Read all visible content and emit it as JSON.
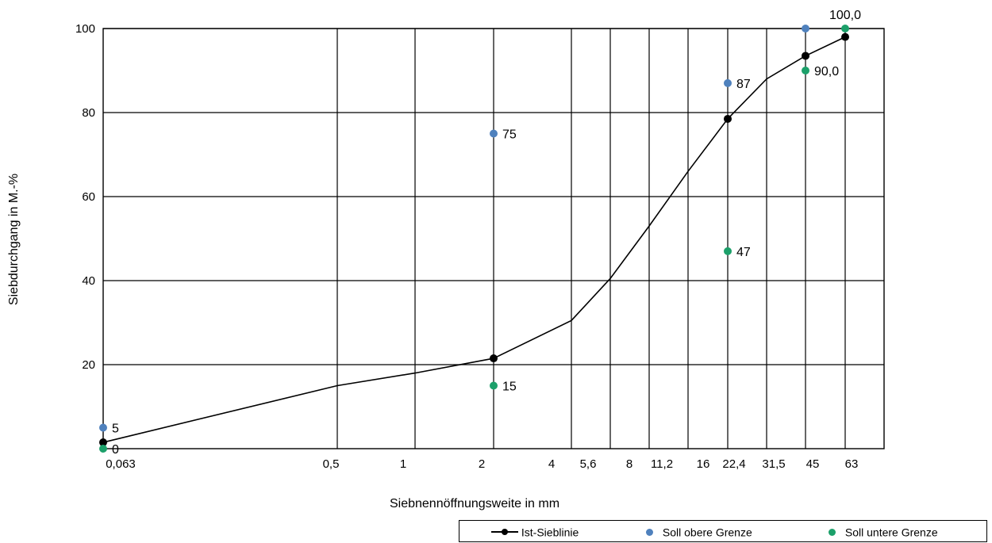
{
  "chart_data": {
    "type": "line",
    "xlabel": "Siebnennöffnungsweite in mm",
    "ylabel": "Siebdurchgang in M.-%",
    "ylim": [
      0,
      100
    ],
    "yticks": [
      "20",
      "40",
      "60",
      "80",
      "100"
    ],
    "xticks": [
      "0,063",
      "0,5",
      "1",
      "2",
      "4",
      "5,6",
      "8",
      "11,2",
      "16",
      "22,4",
      "31,5",
      "45",
      "63"
    ],
    "grid": true,
    "legend_position": "bottom-right",
    "series": [
      {
        "name": "Ist-Sieblinie",
        "kind": "line-markers",
        "color": "#000000",
        "points": [
          {
            "x": "0,063",
            "y": 1.5,
            "marker": true
          },
          {
            "x": "0,5",
            "y": 15,
            "marker": false
          },
          {
            "x": "1",
            "y": 18,
            "marker": false
          },
          {
            "x": "2",
            "y": 21.5,
            "marker": true
          },
          {
            "x": "4",
            "y": 30.5,
            "marker": false
          },
          {
            "x": "5,6",
            "y": 40.5,
            "marker": false
          },
          {
            "x": "8",
            "y": 53,
            "marker": false
          },
          {
            "x": "11,2",
            "y": 66,
            "marker": false
          },
          {
            "x": "16",
            "y": 78.5,
            "marker": true
          },
          {
            "x": "22,4",
            "y": 88,
            "marker": false
          },
          {
            "x": "31,5",
            "y": 93.5,
            "marker": true
          },
          {
            "x": "45",
            "y": 98,
            "marker": true
          }
        ]
      },
      {
        "name": "Soll obere Grenze",
        "kind": "scatter",
        "color": "#4f81bd",
        "points": [
          {
            "x": "0,063",
            "y": 5,
            "label": "5"
          },
          {
            "x": "2",
            "y": 75,
            "label": "75"
          },
          {
            "x": "16",
            "y": 87,
            "label": "87"
          },
          {
            "x": "31,5",
            "y": 100,
            "label": ""
          }
        ]
      },
      {
        "name": "Soll untere Grenze",
        "kind": "scatter",
        "color": "#1ca06a",
        "points": [
          {
            "x": "0,063",
            "y": 0,
            "label": "0"
          },
          {
            "x": "2",
            "y": 15,
            "label": "15"
          },
          {
            "x": "16",
            "y": 47,
            "label": "47"
          },
          {
            "x": "31,5",
            "y": 90,
            "label": "90,0"
          },
          {
            "x": "45",
            "y": 100,
            "label": "100,0"
          }
        ]
      }
    ]
  }
}
